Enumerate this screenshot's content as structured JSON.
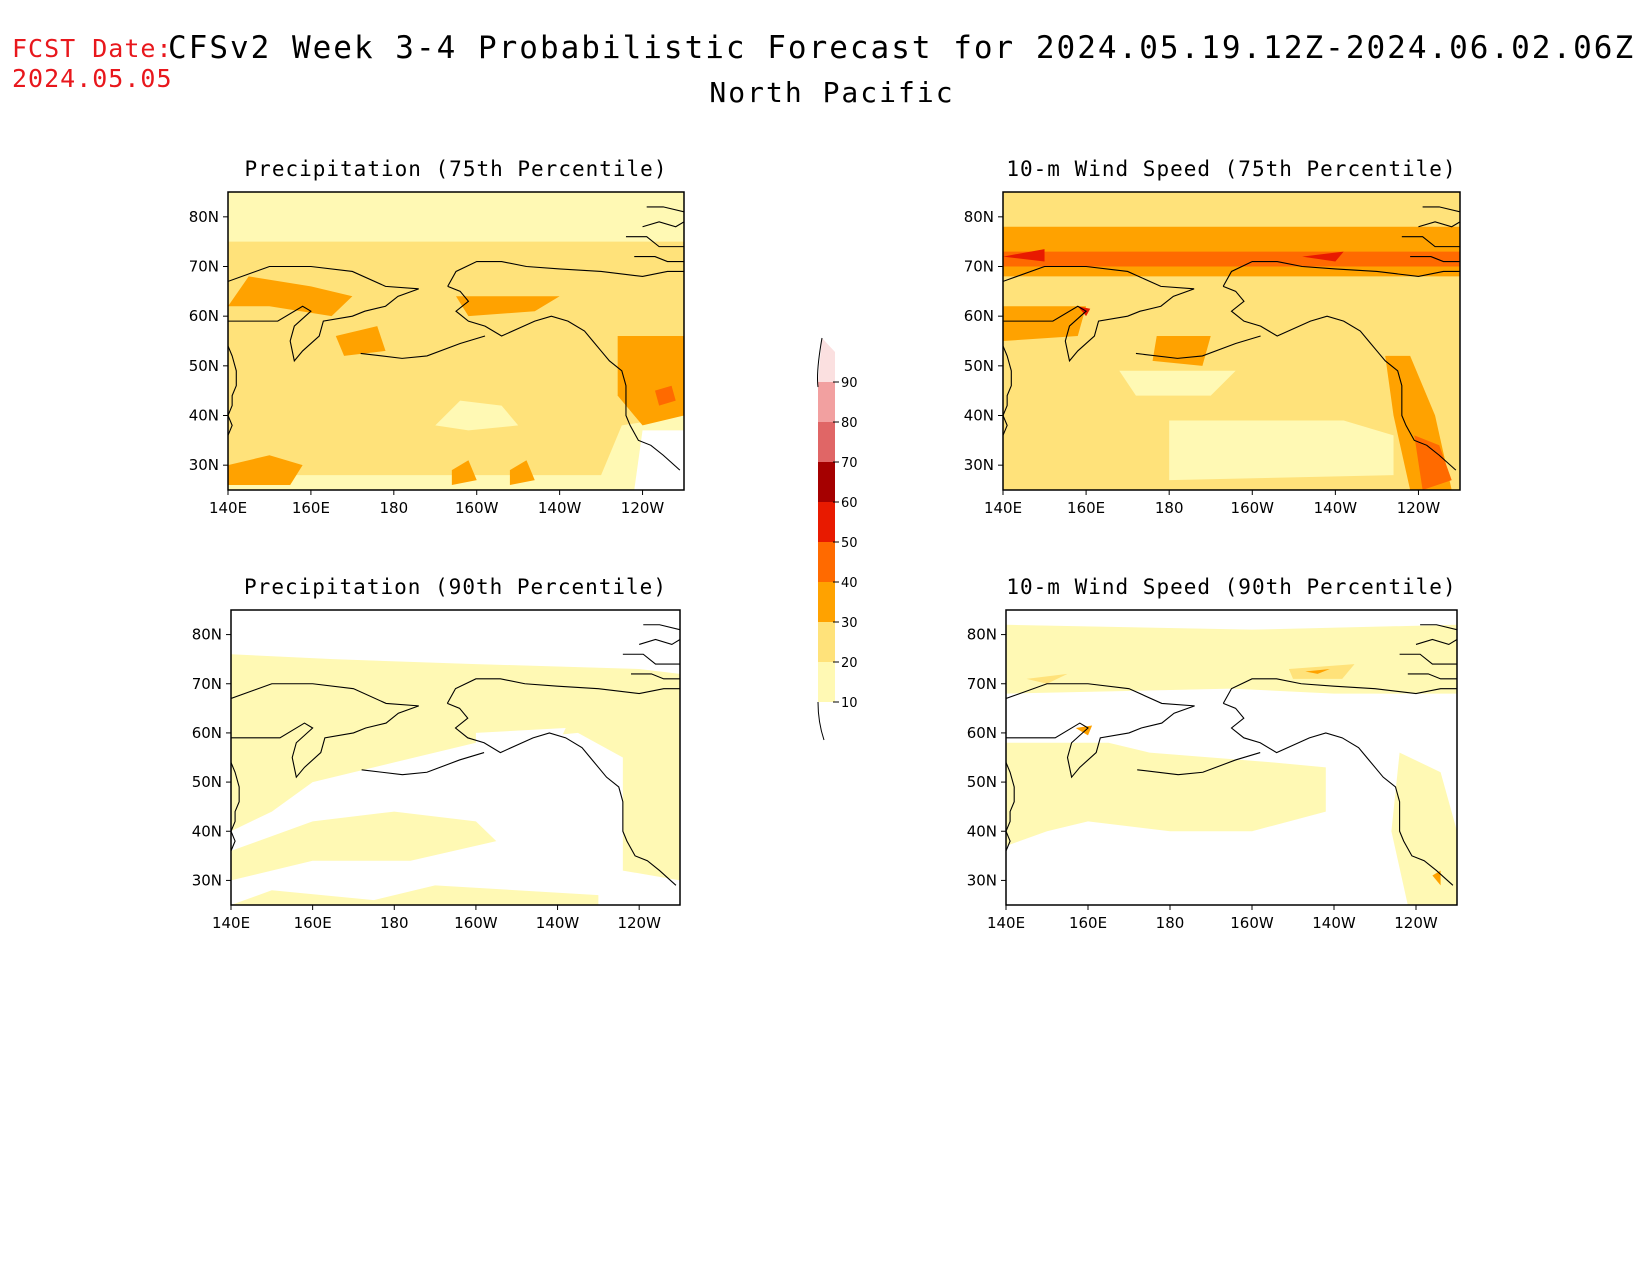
{
  "header": {
    "fcst_label": "FCST Date:",
    "fcst_date": "2024.05.05",
    "title": "CFSv2 Week 3-4 Probabilistic Forecast for 2024.05.19.12Z-2024.06.02.06Z",
    "region": "North Pacific"
  },
  "panels": [
    {
      "id": "precip75",
      "title": "Precipitation (75th Percentile)"
    },
    {
      "id": "wind75",
      "title": "10-m Wind Speed (75th Percentile)"
    },
    {
      "id": "precip90",
      "title": "Precipitation (90th Percentile)"
    },
    {
      "id": "wind90",
      "title": "10-m Wind Speed (90th Percentile)"
    }
  ],
  "axes": {
    "lat_labels": [
      "80N",
      "70N",
      "60N",
      "50N",
      "40N",
      "30N"
    ],
    "lat_values": [
      80,
      70,
      60,
      50,
      40,
      30
    ],
    "lon_labels": [
      "140E",
      "160E",
      "180",
      "160W",
      "140W",
      "120W"
    ],
    "lon_values": [
      140,
      160,
      180,
      200,
      220,
      240
    ],
    "lat_range": [
      25,
      85
    ],
    "lon_range": [
      140,
      250
    ]
  },
  "colorbar": {
    "labels": [
      "10",
      "20",
      "30",
      "40",
      "50",
      "60",
      "70",
      "80",
      "90"
    ],
    "colors": [
      "#fff9b4",
      "#ffe27a",
      "#ffa200",
      "#ff6a00",
      "#e81a00",
      "#a50000",
      "#e06666",
      "#f2a0a0",
      "#fbe0e0"
    ]
  }
}
